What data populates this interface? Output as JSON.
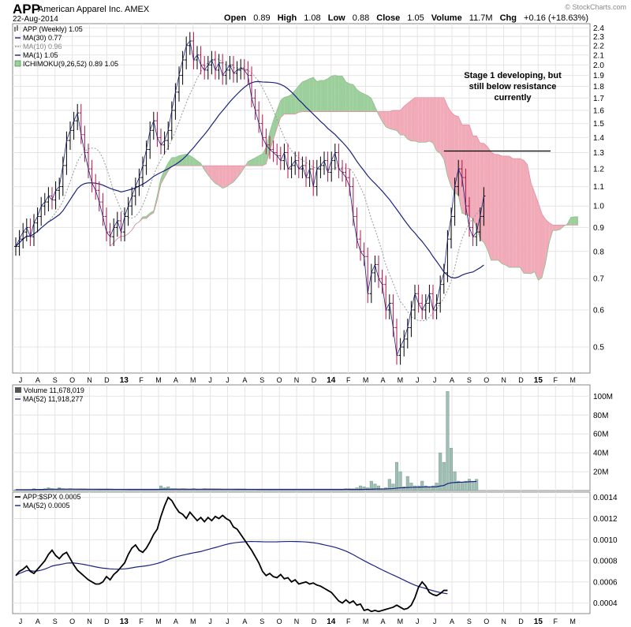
{
  "header": {
    "symbol": "APP",
    "company": "American Apparel Inc.  AMEX",
    "date": "22-Aug-2014",
    "brand": "© StockCharts.com",
    "open_label": "Open",
    "open": "0.89",
    "high_label": "High",
    "high": "1.08",
    "low_label": "Low",
    "low": "0.88",
    "close_label": "Close",
    "close": "1.05",
    "volume_label": "Volume",
    "volume": "11.7M",
    "chg_label": "Chg",
    "chg": "+0.16 (+18.63%)"
  },
  "colors": {
    "bull": "#000000",
    "bear": "#b0154a",
    "ma30": "#1a237e",
    "ma10": "#999999",
    "cloud_green": "#9ccf9c",
    "cloud_red": "#f0aab8",
    "volume_bar": "#9fbfb5",
    "grid": "#e4e4e4"
  },
  "chart_data": [
    {
      "type": "line",
      "panel": "price",
      "legend": [
        {
          "text": "APP (Weekly) 1.05",
          "icon": "price-bars-icon"
        },
        {
          "text": "MA(30) 0.77"
        },
        {
          "text": "MA(10) 0.96"
        },
        {
          "text": "MA(1) 1.05"
        },
        {
          "text": "ICHIMOKU(9,26,52) 0.89 1.05"
        }
      ],
      "annotation": [
        "Stage 1 developing, but",
        "still below resistance",
        "currently"
      ],
      "resistance_level": 1.31,
      "y_scale": "log",
      "ylim": [
        0.44,
        2.45
      ],
      "y_ticks": [
        "2.4",
        "2.3",
        "2.2",
        "2.1",
        "2.0",
        "1.9",
        "1.8",
        "1.7",
        "1.6",
        "1.5",
        "1.4",
        "1.3",
        "1.2",
        "1.1",
        "1.0",
        "0.9",
        "0.8",
        "0.7",
        "0.6",
        "0.5"
      ],
      "x_labels": [
        "J",
        "A",
        "S",
        "O",
        "N",
        "D",
        "13",
        "F",
        "M",
        "A",
        "M",
        "J",
        "J",
        "A",
        "S",
        "O",
        "N",
        "D",
        "14",
        "F",
        "M",
        "A",
        "M",
        "J",
        "J",
        "A",
        "S",
        "O",
        "N",
        "D",
        "15",
        "F",
        "M"
      ],
      "close": [
        0.82,
        0.85,
        0.88,
        0.9,
        0.86,
        0.92,
        0.95,
        1.0,
        1.02,
        1.05,
        1.03,
        1.08,
        1.1,
        1.22,
        1.38,
        1.45,
        1.52,
        1.58,
        1.42,
        1.3,
        1.2,
        1.12,
        1.08,
        1.02,
        0.95,
        0.88,
        0.86,
        0.9,
        0.93,
        0.88,
        0.95,
        1.0,
        1.05,
        1.1,
        1.15,
        1.22,
        1.32,
        1.45,
        1.52,
        1.4,
        1.35,
        1.38,
        1.45,
        1.6,
        1.75,
        1.9,
        2.05,
        2.2,
        2.25,
        2.05,
        2.1,
        2.0,
        1.95,
        2.0,
        2.05,
        1.95,
        2.02,
        1.9,
        1.95,
        2.0,
        1.92,
        1.95,
        1.97,
        1.95,
        1.9,
        1.7,
        1.6,
        1.5,
        1.4,
        1.35,
        1.32,
        1.3,
        1.28,
        1.25,
        1.3,
        1.2,
        1.22,
        1.25,
        1.2,
        1.22,
        1.15,
        1.2,
        1.1,
        1.2,
        1.22,
        1.25,
        1.18,
        1.25,
        1.3,
        1.2,
        1.18,
        1.15,
        1.1,
        0.95,
        0.85,
        0.8,
        0.78,
        0.65,
        0.72,
        0.75,
        0.7,
        0.68,
        0.6,
        0.62,
        0.55,
        0.48,
        0.5,
        0.52,
        0.55,
        0.6,
        0.65,
        0.62,
        0.6,
        0.62,
        0.65,
        0.6,
        0.62,
        0.68,
        0.72,
        0.85,
        0.95,
        1.1,
        1.2,
        1.15,
        1.0,
        0.9,
        0.86,
        0.88,
        0.95,
        1.05
      ],
      "volume": {
        "label": "Volume 11,678,019",
        "ma_label": "MA(52) 11,918,277",
        "values_m": [
          1,
          1,
          1,
          1,
          1,
          2,
          1,
          1,
          2,
          3,
          2,
          1,
          3,
          2,
          1,
          2,
          1,
          1,
          1,
          1,
          1,
          1,
          1,
          1,
          1,
          1,
          1,
          1,
          1,
          1,
          1,
          1,
          1,
          1,
          1,
          1,
          1,
          1,
          1,
          1,
          5,
          3,
          4,
          2,
          2,
          1,
          2,
          1,
          1,
          2,
          1,
          1,
          2,
          1,
          1,
          1,
          1,
          1,
          1,
          1,
          1,
          1,
          1,
          1,
          1,
          1,
          1,
          1,
          1,
          1,
          1,
          1,
          1,
          1,
          1,
          1,
          1,
          1,
          1,
          1,
          1,
          1,
          1,
          1,
          1,
          1,
          1,
          1,
          1,
          1,
          1,
          2,
          2,
          2,
          3,
          5,
          4,
          3,
          10,
          7,
          5,
          2,
          3,
          12,
          7,
          30,
          20,
          4,
          15,
          8,
          5,
          5,
          10,
          5,
          3,
          5,
          8,
          40,
          30,
          105,
          45,
          20,
          10,
          8,
          10,
          12,
          10,
          12
        ],
        "y_ticks": [
          "100M",
          "80M",
          "60M",
          "40M",
          "20M"
        ],
        "ylim": [
          0,
          112
        ]
      },
      "ratio": {
        "label": "APP:$SPX 0.0005",
        "ma_label": "MA(52) 0.0005",
        "values": [
          0.00066,
          0.0007,
          0.00072,
          0.00075,
          0.0007,
          0.00068,
          0.00072,
          0.00076,
          0.0008,
          0.00086,
          0.0009,
          0.00085,
          0.00082,
          0.00086,
          0.00088,
          0.00082,
          0.00076,
          0.00071,
          0.00068,
          0.00065,
          0.00062,
          0.0006,
          0.00058,
          0.00058,
          0.0006,
          0.00065,
          0.00062,
          0.00067,
          0.0007,
          0.00074,
          0.00078,
          0.00086,
          0.00092,
          0.00095,
          0.0009,
          0.00088,
          0.00092,
          0.00098,
          0.00105,
          0.0011,
          0.00122,
          0.00132,
          0.0014,
          0.00137,
          0.00131,
          0.00126,
          0.00124,
          0.0012,
          0.00126,
          0.00122,
          0.00118,
          0.00121,
          0.00117,
          0.00121,
          0.00118,
          0.00122,
          0.0012,
          0.00123,
          0.0012,
          0.00118,
          0.00112,
          0.0011,
          0.00105,
          0.001,
          0.00095,
          0.0009,
          0.00084,
          0.00078,
          0.0007,
          0.00066,
          0.00068,
          0.00065,
          0.00064,
          0.00067,
          0.00063,
          0.00064,
          0.0006,
          0.00062,
          0.00058,
          0.00059,
          0.0006,
          0.00058,
          0.00059,
          0.00057,
          0.00056,
          0.00054,
          0.00052,
          0.0005,
          0.00046,
          0.00042,
          0.0004,
          0.00043,
          0.0004,
          0.00042,
          0.00038,
          0.00039,
          0.00033,
          0.00034,
          0.00032,
          0.00033,
          0.00032,
          0.00033,
          0.00034,
          0.00035,
          0.00036,
          0.00038,
          0.00036,
          0.00034,
          0.00035,
          0.00038,
          0.00045,
          0.00055,
          0.0006,
          0.00056,
          0.0005,
          0.00048,
          0.00047,
          0.00049,
          0.00052,
          0.00052
        ],
        "y_ticks": [
          "0.0014",
          "0.0012",
          "0.0010",
          "0.0008",
          "0.0006",
          "0.0004"
        ],
        "ylim": [
          0.0003,
          0.00145
        ]
      }
    }
  ]
}
